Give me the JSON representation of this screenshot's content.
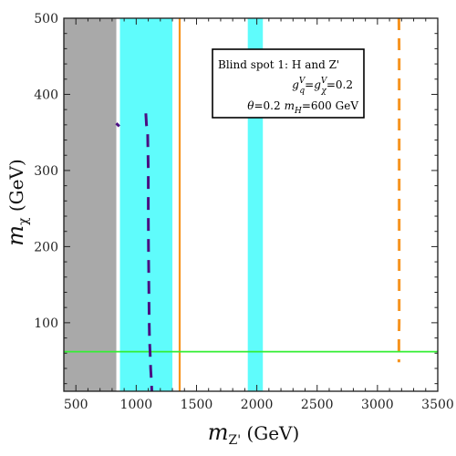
{
  "chart_data": {
    "type": "line",
    "xlabel": {
      "main": "m",
      "sub": "Z'",
      "unit": " (GeV)"
    },
    "ylabel": {
      "main": "m",
      "sub": "χ",
      "unit": " (GeV)"
    },
    "xlim": [
      400,
      3500
    ],
    "ylim": [
      10,
      500
    ],
    "xticks": [
      500,
      1000,
      1500,
      2000,
      2500,
      3000,
      3500
    ],
    "yticks": [
      100,
      200,
      300,
      400,
      500
    ],
    "colors": {
      "gray_band": "#a9a9a9",
      "cyan_band": "#5ffcfc",
      "orange": "#f7931e",
      "purple": "#4b0f82",
      "green": "#33ee33",
      "frame": "#1a1a1a"
    },
    "regions": [
      {
        "kind": "gray-band",
        "x0": 400,
        "x1": 835
      },
      {
        "kind": "cyan-band",
        "x0": 865,
        "x1": 1300
      },
      {
        "kind": "cyan-band",
        "x0": 1925,
        "x1": 2050
      }
    ],
    "curves": [
      {
        "kind": "orange-solid",
        "x": [
          1360,
          1360
        ],
        "y": [
          10,
          500
        ]
      },
      {
        "kind": "orange-dashed",
        "x": [
          3178,
          3180,
          3180,
          3180,
          3180,
          3178,
          3178
        ],
        "y": [
          500,
          450,
          350,
          200,
          100,
          80,
          48
        ]
      },
      {
        "kind": "green-solid",
        "x": [
          400,
          3500
        ],
        "y": [
          62,
          62
        ]
      },
      {
        "kind": "purple-dashed",
        "x": [
          1080,
          1085,
          1095,
          1100,
          1100,
          1102,
          1105,
          1108,
          1110,
          1115,
          1120,
          1125,
          1130
        ],
        "y": [
          375,
          360,
          350,
          300,
          250,
          200,
          150,
          100,
          80,
          60,
          40,
          25,
          10
        ]
      },
      {
        "kind": "purple-dashed-short",
        "x": [
          835,
          860
        ],
        "y": [
          362,
          358
        ]
      }
    ],
    "legend": {
      "line1": "Blind spot 1: H and Z'",
      "line2": {
        "g": "g",
        "q_sup": "V",
        "q_sub": "q",
        "eq": "=",
        "x_sup": "V",
        "x_sub": "χ",
        "value": "=0.2"
      },
      "line3": {
        "theta": "θ",
        "theta_value": "=0.2",
        "m": "m",
        "m_sub": "H",
        "m_value": "=600 GeV"
      }
    }
  }
}
